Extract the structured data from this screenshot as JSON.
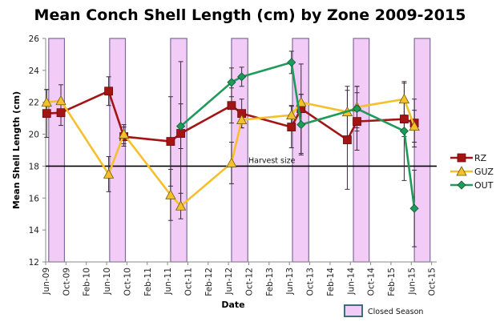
{
  "chart_data": {
    "type": "line",
    "title": "Mean Conch Shell Length (cm) by Zone 2009-2015",
    "xlabel": "Date",
    "ylabel": "Mean Shell Length (cm)",
    "ylim": [
      12,
      26
    ],
    "yticks": [
      12,
      14,
      16,
      18,
      20,
      22,
      24,
      26
    ],
    "xticks": [
      "Jun-09",
      "Oct-09",
      "Feb-10",
      "Jun-10",
      "Oct-10",
      "Feb-11",
      "Jun-11",
      "Oct-11",
      "Feb-12",
      "Jun-12",
      "Oct-12",
      "Feb-13",
      "Jun-13",
      "Oct-13",
      "Feb-14",
      "Jun-14",
      "Oct-14",
      "Feb-15",
      "Jun-15",
      "Oct-15"
    ],
    "x_unit": "months since Jun-09",
    "x": [
      0.2,
      3.0,
      12.4,
      15.4,
      24.6,
      26.6,
      36.6,
      38.6,
      48.4,
      50.3,
      59.4,
      61.3,
      70.6,
      72.6
    ],
    "hline": {
      "value": 18,
      "label": "Harvest size"
    },
    "closed_seasons": [
      [
        0.6,
        3.7
      ],
      [
        12.6,
        15.7
      ],
      [
        24.6,
        27.8
      ],
      [
        36.6,
        39.8
      ],
      [
        48.6,
        51.8
      ],
      [
        60.6,
        63.7
      ],
      [
        72.6,
        75.7
      ]
    ],
    "legend_position": "right",
    "series": [
      {
        "name": "RZ",
        "color": "#a31515",
        "marker": "square",
        "values": [
          21.3,
          21.35,
          22.7,
          19.85,
          19.55,
          20.05,
          21.8,
          21.3,
          20.45,
          21.6,
          19.65,
          20.8,
          20.95,
          20.7
        ],
        "errors": [
          1.5,
          0.8,
          0.9,
          0.6,
          2.8,
          4.5,
          1.1,
          0.9,
          1.3,
          2.8,
          3.1,
          1.8,
          1.1,
          1.5
        ]
      },
      {
        "name": "GUZ",
        "color": "#f5c02b",
        "marker": "triangle",
        "values": [
          22.0,
          22.1,
          17.5,
          20.0,
          16.2,
          15.5,
          18.2,
          20.9,
          21.2,
          22.0,
          21.4,
          21.7,
          22.2,
          20.5
        ],
        "errors": [
          0.8,
          1.0,
          1.1,
          0.6,
          1.6,
          0.8,
          1.3,
          0.5,
          0.6,
          0.5,
          1.6,
          1.3,
          1.0,
          1.0
        ]
      },
      {
        "name": "OUT",
        "color": "#1f9a5a",
        "marker": "diamond",
        "values": [
          null,
          null,
          null,
          null,
          null,
          20.5,
          23.25,
          23.6,
          24.5,
          20.6,
          null,
          21.6,
          20.2,
          15.35
        ],
        "errors": [
          null,
          null,
          null,
          null,
          null,
          1.4,
          0.9,
          0.6,
          0.7,
          1.9,
          null,
          1.4,
          3.1,
          2.4
        ]
      }
    ],
    "legend_extra": "Closed Season"
  }
}
